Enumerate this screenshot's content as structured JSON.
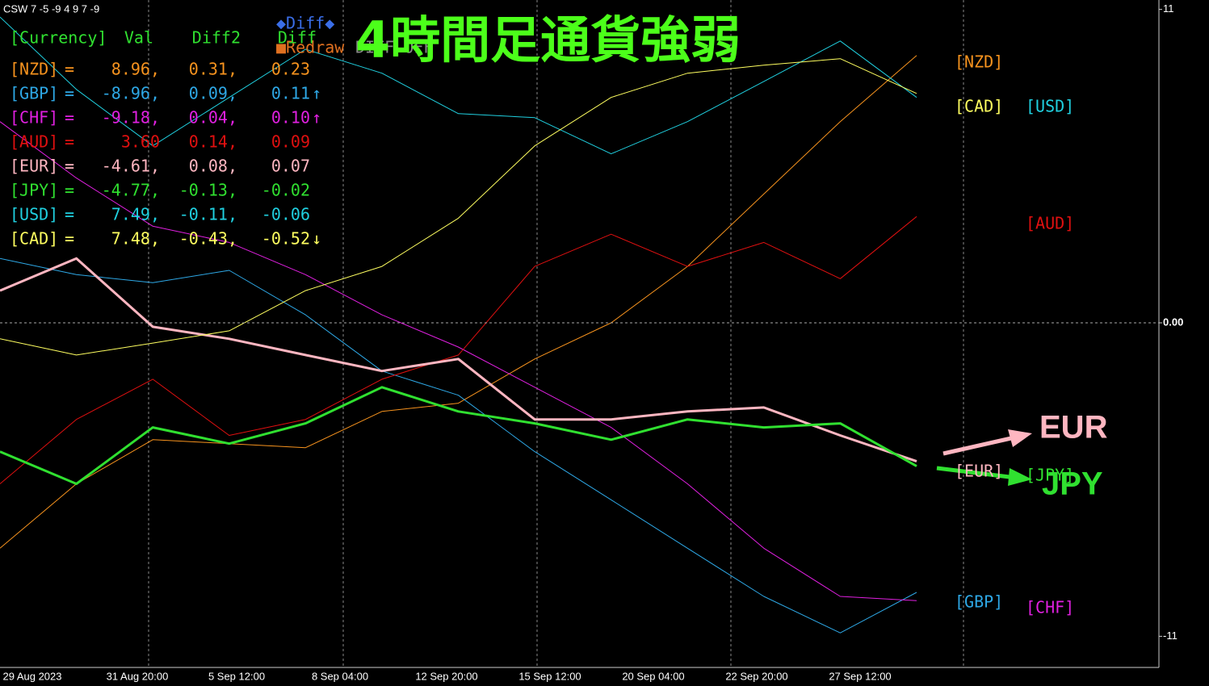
{
  "chart_data": {
    "type": "line",
    "indicator": "CSW 7 -5 -9 4 9 7 -9",
    "title": "4時間足通貨強弱",
    "legend_items": [
      "◆Diff◆",
      "■Redraw",
      "DIFF OFF"
    ],
    "x_labels": [
      "29 Aug 2023",
      "31 Aug 20:00",
      "5 Sep 12:00",
      "8 Sep 04:00",
      "12 Sep 20:00",
      "15 Sep 12:00",
      "20 Sep 04:00",
      "22 Sep 20:00",
      "27 Sep 12:00"
    ],
    "ylim": [
      -11,
      11
    ],
    "yticks": [
      11,
      {
        "value": 0,
        "label": "0.00"
      },
      -11
    ],
    "grid": true,
    "series": [
      {
        "name": "[NZD]",
        "color": "#f7931e",
        "values": [
          -7.91,
          -5.65,
          -4.1,
          -4.24,
          -4.38,
          -3.11,
          -2.82,
          -1.27,
          0,
          1.98,
          4.52,
          7.06,
          9.38
        ]
      },
      {
        "name": "[GBP]",
        "color": "#2ea8e6",
        "values": [
          2.26,
          1.69,
          1.41,
          1.84,
          0.28,
          -1.69,
          -2.54,
          -4.52,
          -6.21,
          -7.91,
          -9.6,
          -10.88,
          -9.46
        ]
      },
      {
        "name": "[CHF]",
        "color": "#e020e0",
        "values": [
          7.06,
          5.08,
          3.39,
          2.82,
          1.69,
          0.28,
          -0.85,
          -2.26,
          -3.67,
          -5.65,
          -7.91,
          -9.6,
          -9.75
        ]
      },
      {
        "name": "[AUD]",
        "color": "#e01010",
        "values": [
          -5.65,
          -3.39,
          -1.98,
          -3.95,
          -3.39,
          -1.98,
          -1.13,
          1.98,
          3.11,
          1.98,
          2.82,
          1.55,
          3.73
        ]
      },
      {
        "name": "[EUR]",
        "color": "#ffb6c1",
        "values": [
          1.13,
          2.26,
          -0.14,
          -0.56,
          -1.13,
          -1.69,
          -1.27,
          -3.39,
          -3.39,
          -3.11,
          -2.97,
          -3.95,
          -4.86
        ]
      },
      {
        "name": "[JPY]",
        "color": "#30e030",
        "values": [
          -4.52,
          -5.65,
          -3.67,
          -4.24,
          -3.53,
          -2.26,
          -3.11,
          -3.53,
          -4.1,
          -3.39,
          -3.67,
          -3.53,
          -5.03
        ]
      },
      {
        "name": "[USD]",
        "color": "#20d0e0",
        "values": [
          10.73,
          8.19,
          6.21,
          7.91,
          9.6,
          8.76,
          7.34,
          7.2,
          5.93,
          7.06,
          8.47,
          9.89,
          7.91
        ]
      },
      {
        "name": "[CAD]",
        "color": "#ffff60",
        "values": [
          -0.56,
          -1.13,
          -0.71,
          -0.28,
          1.13,
          1.98,
          3.67,
          6.21,
          7.91,
          8.76,
          9.04,
          9.27,
          8.05
        ]
      }
    ],
    "annotations": [
      "EUR",
      "JPY"
    ]
  },
  "table": {
    "header": [
      "[Currency]",
      "Val",
      "Diff2",
      "Diff"
    ],
    "rows": [
      [
        "[NZD]",
        "=",
        "8.96,",
        "0.31,",
        "0.23",
        ""
      ],
      [
        "[GBP]",
        "=",
        "-8.96,",
        "0.09,",
        "0.11",
        "↑"
      ],
      [
        "[CHF]",
        "=",
        "-9.18,",
        "0.04,",
        "0.10",
        "↑"
      ],
      [
        "[AUD]",
        "=",
        "3.60",
        "0.14,",
        "0.09",
        ""
      ],
      [
        "[EUR]",
        "=",
        "-4.61,",
        "0.08,",
        "0.07",
        ""
      ],
      [
        "[JPY]",
        "=",
        "-4.77,",
        "-0.13,",
        "-0.02",
        ""
      ],
      [
        "[USD]",
        "=",
        "7.49,",
        "-0.11,",
        "-0.06",
        ""
      ],
      [
        "[CAD]",
        "=",
        "7.48,",
        "-0.43,",
        "-0.52",
        "↓"
      ]
    ]
  }
}
